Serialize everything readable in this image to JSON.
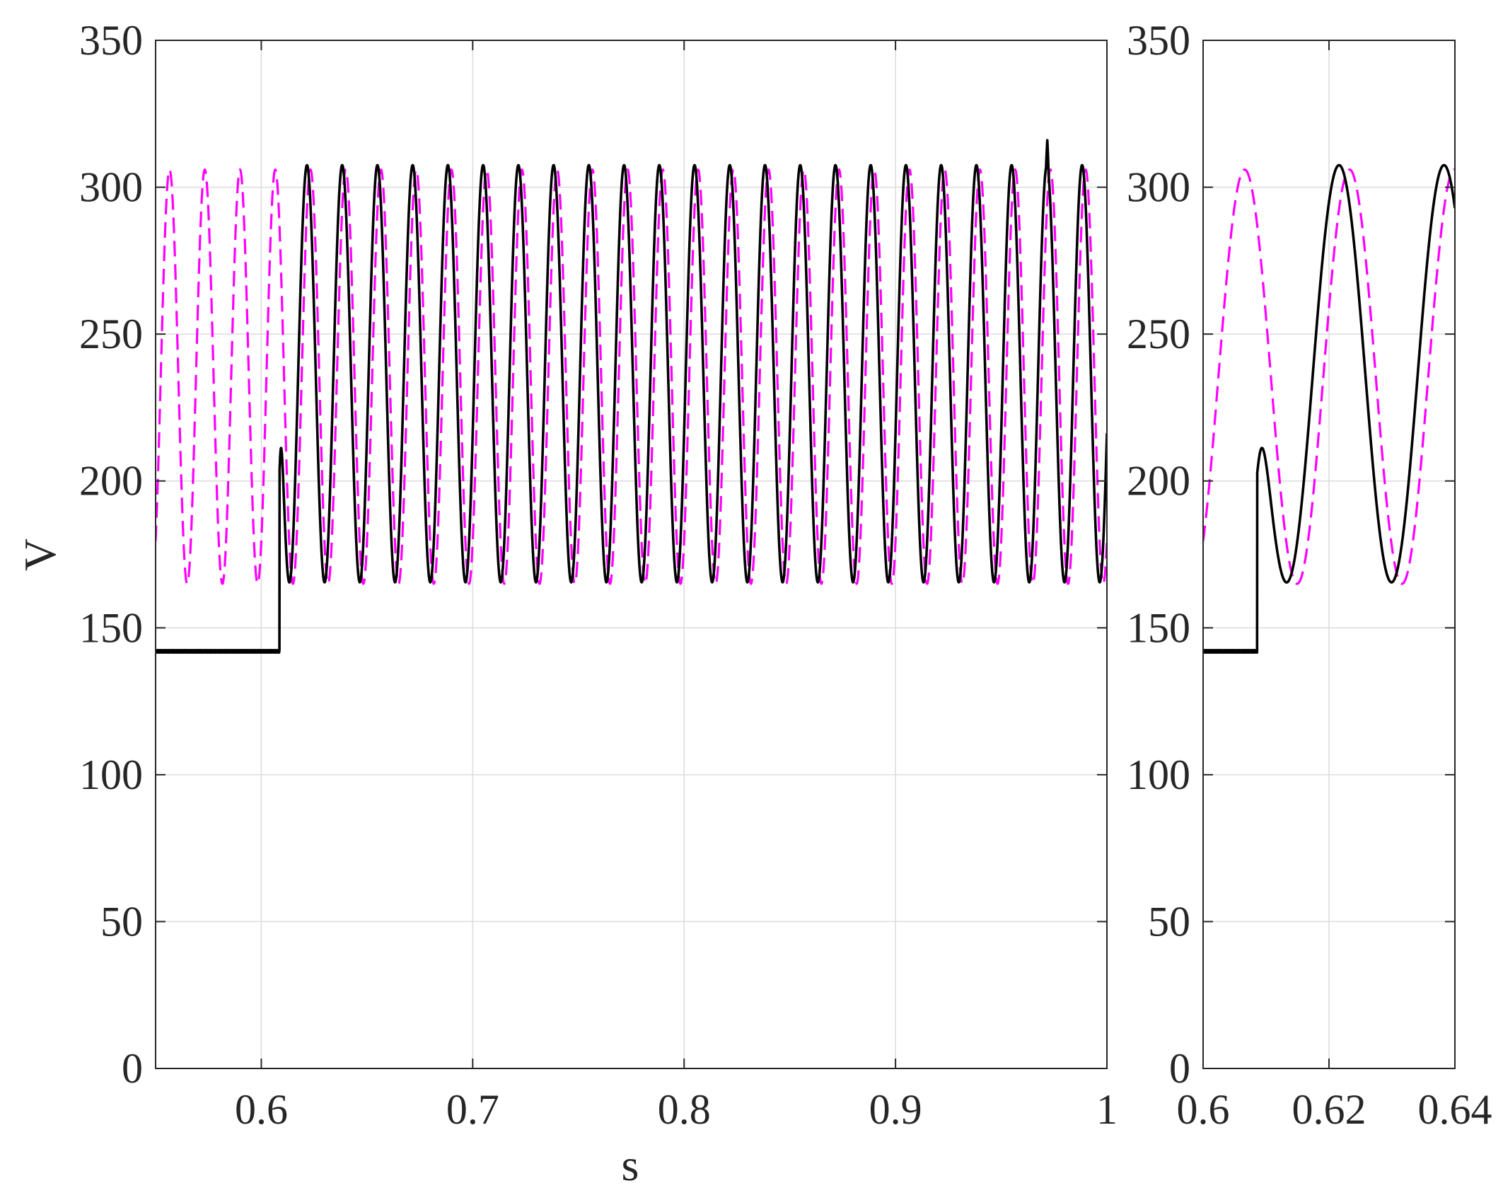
{
  "colors": {
    "reference": "#ff00ff",
    "measured": "#000000",
    "grid": "#dcdcdc",
    "axis": "#262626"
  },
  "chart_data": [
    {
      "type": "line",
      "title": "",
      "xlabel": "s",
      "ylabel": "V",
      "xlim": [
        0.55,
        1.0
      ],
      "ylim": [
        0,
        350
      ],
      "xticks": [
        0.6,
        0.7,
        0.8,
        0.9,
        1.0
      ],
      "xtick_labels": [
        "0.6",
        "0.7",
        "0.8",
        "0.9",
        "1"
      ],
      "yticks": [
        0,
        50,
        100,
        150,
        200,
        250,
        300,
        350
      ],
      "ytick_labels": [
        "0",
        "50",
        "100",
        "150",
        "200",
        "250",
        "300",
        "350"
      ],
      "grid": true,
      "legend": "none",
      "series": [
        {
          "style": "dashed",
          "color": "#ff00ff",
          "model": "sine",
          "offset": 235.5,
          "amplitude": 70.5,
          "frequency_hz": 60,
          "phase_ref_x": 0.6066,
          "x_range": [
            0.55,
            1.0
          ]
        },
        {
          "style": "solid",
          "color": "#000000",
          "model": "step_then_sine",
          "pre_value": 142,
          "step_at": 0.6086,
          "step_peak": 206,
          "offset": 236.5,
          "amplitude": 71,
          "frequency_hz": 60,
          "phase_ref_x": 0.6216,
          "x_range": [
            0.55,
            1.0
          ],
          "spikes": [
            {
              "x": 0.9718,
              "y": 316
            }
          ]
        }
      ]
    },
    {
      "type": "line",
      "title": "",
      "xlabel": "",
      "ylabel": "",
      "xlim": [
        0.6,
        0.64
      ],
      "ylim": [
        0,
        350
      ],
      "xticks": [
        0.6,
        0.62,
        0.64
      ],
      "xtick_labels": [
        "0.6",
        "0.62",
        "0.64"
      ],
      "yticks": [
        0,
        50,
        100,
        150,
        200,
        250,
        300,
        350
      ],
      "ytick_labels": [
        "0",
        "50",
        "100",
        "150",
        "200",
        "250",
        "300",
        "350"
      ],
      "grid": true,
      "legend": "none",
      "series": [
        {
          "style": "dashed",
          "color": "#ff00ff",
          "model": "sine",
          "offset": 235.5,
          "amplitude": 70.5,
          "frequency_hz": 60,
          "phase_ref_x": 0.6066,
          "x_range": [
            0.6,
            0.64
          ]
        },
        {
          "style": "solid",
          "color": "#000000",
          "model": "step_then_sine",
          "pre_value": 142,
          "step_at": 0.6086,
          "step_peak": 206,
          "offset": 236.5,
          "amplitude": 71,
          "frequency_hz": 60,
          "phase_ref_x": 0.6216,
          "x_range": [
            0.6,
            0.64
          ],
          "spikes": []
        }
      ]
    }
  ]
}
